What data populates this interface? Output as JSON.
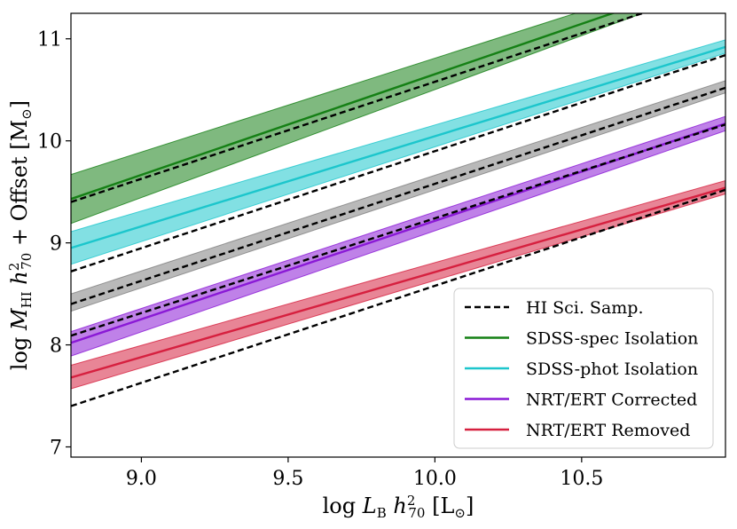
{
  "chart_data": {
    "type": "line",
    "xlabel": "log L_B h_70^2 [L_⊙]",
    "ylabel": "log M_HI h_70^2 + Offset [M_⊙]",
    "xlim": [
      8.76,
      10.99
    ],
    "ylim": [
      6.9,
      11.25
    ],
    "x_ticks": [
      9.0,
      9.5,
      10.0,
      10.5
    ],
    "x_tick_labels": [
      "9.0",
      "9.5",
      "10.0",
      "10.5"
    ],
    "y_ticks": [
      7,
      8,
      9,
      10,
      11
    ],
    "y_tick_labels": [
      "7",
      "8",
      "9",
      "10",
      "11"
    ],
    "grid": false,
    "legend_position": "bottom-right",
    "series": [
      {
        "name": "HI Sci. Samp.",
        "color": "#000000",
        "style": "dashed",
        "lines": [
          [
            [
              8.76,
              9.4
            ],
            [
              10.99,
              11.52
            ]
          ],
          [
            [
              8.76,
              8.72
            ],
            [
              10.99,
              10.84
            ]
          ],
          [
            [
              8.76,
              8.4
            ],
            [
              10.99,
              10.52
            ]
          ],
          [
            [
              8.76,
              8.09
            ],
            [
              10.99,
              10.16
            ]
          ],
          [
            [
              8.76,
              7.4
            ],
            [
              10.99,
              9.52
            ]
          ]
        ]
      },
      {
        "name": "SDSS-spec Isolation",
        "color": "#158015",
        "style": "solid",
        "x": [
          8.76,
          10.99
        ],
        "y": [
          9.43,
          11.63
        ],
        "band_low": [
          9.19,
          11.55
        ],
        "band_high": [
          9.67,
          11.72
        ]
      },
      {
        "name": "SDSS-phot Isolation",
        "color": "#1cc6cc",
        "style": "solid",
        "x": [
          8.76,
          10.99
        ],
        "y": [
          8.95,
          10.92
        ],
        "band_low": [
          8.79,
          10.86
        ],
        "band_high": [
          9.11,
          10.99
        ]
      },
      {
        "name": "",
        "color": "#7f7f7f",
        "style": "band",
        "x": [
          8.76,
          10.99
        ],
        "band_low": [
          8.33,
          10.47
        ],
        "band_high": [
          8.5,
          10.59
        ]
      },
      {
        "name": "NRT/ERT Corrected",
        "color": "#8a19d6",
        "style": "solid",
        "x": [
          8.76,
          10.99
        ],
        "y": [
          8.02,
          10.17
        ],
        "band_low": [
          7.89,
          10.1
        ],
        "band_high": [
          8.13,
          10.24
        ]
      },
      {
        "name": "NRT/ERT Removed",
        "color": "#d6203f",
        "style": "solid",
        "x": [
          8.76,
          10.99
        ],
        "y": [
          7.68,
          9.54
        ],
        "band_low": [
          7.57,
          9.48
        ],
        "band_high": [
          7.8,
          9.61
        ]
      }
    ]
  }
}
